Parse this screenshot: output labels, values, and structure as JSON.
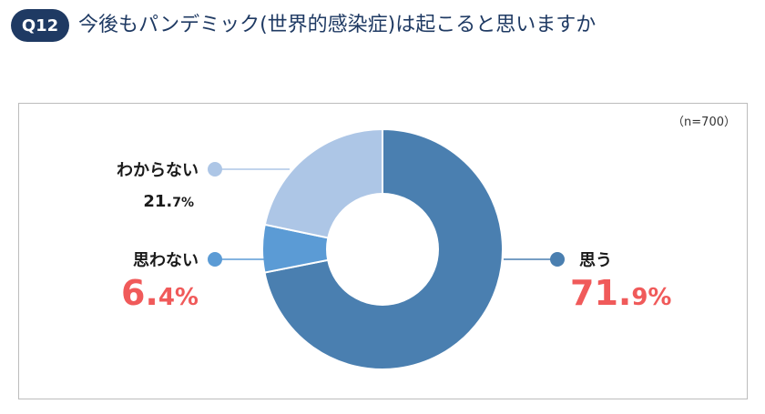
{
  "header": {
    "badge": "Q12",
    "title": "今後もパンデミック(世界的感染症)は起こると思いますか"
  },
  "chart_data": {
    "type": "pie",
    "style": "donut",
    "title": "今後もパンデミック(世界的感染症)は起こると思いますか",
    "note": "（n=700）",
    "unit": "%",
    "slices": [
      {
        "label": "思う",
        "value": 71.9,
        "int_part": "71.",
        "dec_part": "9%",
        "color": "#4a7fb0",
        "emphasis": true
      },
      {
        "label": "思わない",
        "value": 6.4,
        "int_part": "6.",
        "dec_part": "4%",
        "color": "#5b9bd5",
        "emphasis": true
      },
      {
        "label": "わからない",
        "value": 21.7,
        "int_part": "21.",
        "dec_part": "7%",
        "color": "#adc6e6",
        "emphasis": false
      }
    ],
    "accent_color": "#f05a5a",
    "text_color": "#1a1a1a"
  }
}
